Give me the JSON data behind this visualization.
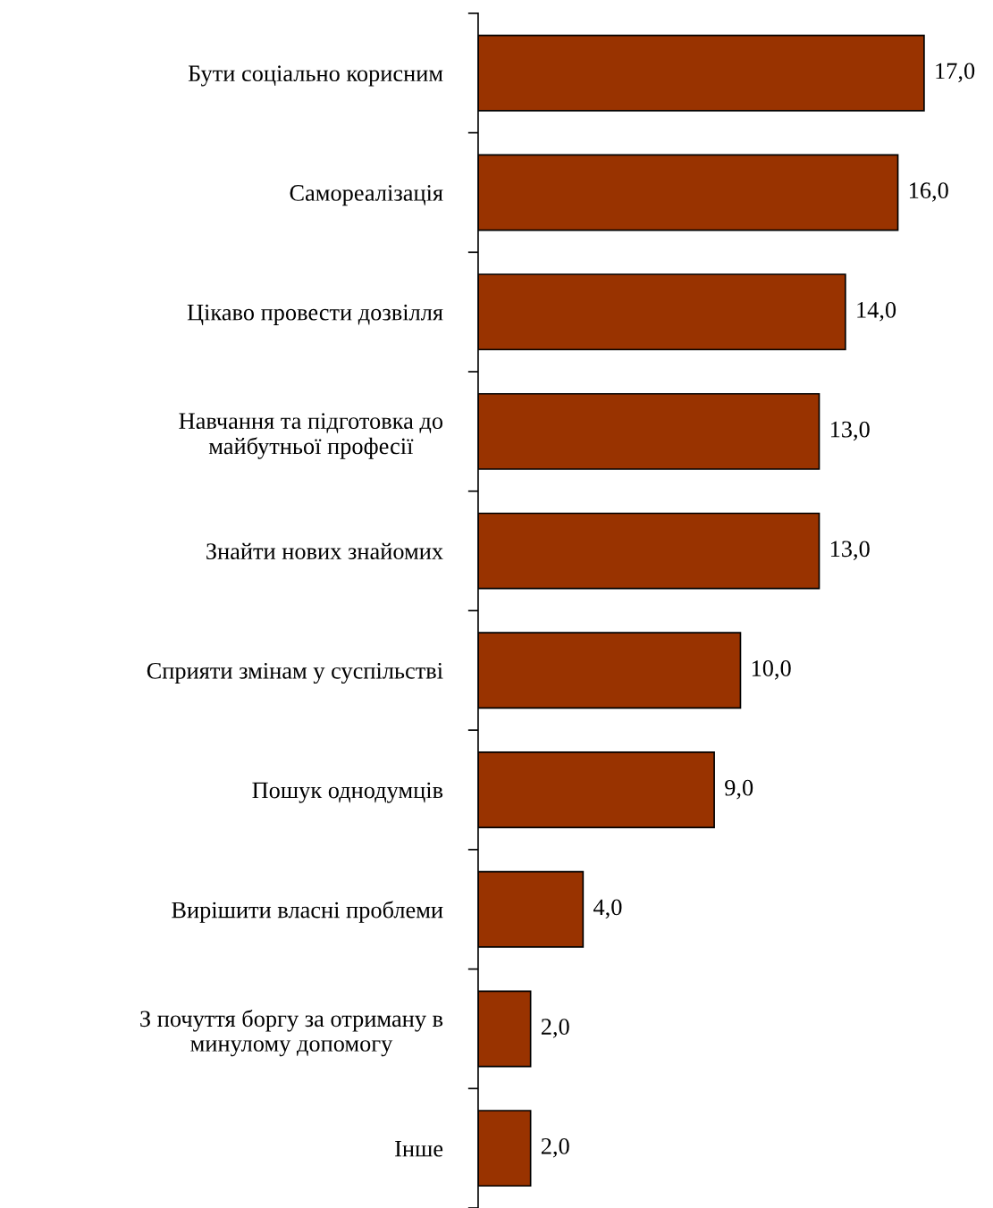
{
  "chart_data": {
    "type": "bar",
    "orientation": "horizontal",
    "categories": [
      "Бути соціально корисним",
      "Самореалізація",
      "Цікаво провести дозвілля",
      "Навчання та підготовка до\nмайбутньої професії",
      "Знайти нових знайомих",
      "Сприяти змінам у суспільстві",
      "Пошук однодумців",
      "Вирішити власні проблеми",
      "З почуття боргу за отриману в\nминулому допомогу",
      "Інше"
    ],
    "values": [
      17.0,
      16.0,
      14.0,
      13.0,
      13.0,
      10.0,
      9.0,
      4.0,
      2.0,
      2.0
    ],
    "value_labels": [
      "17,0",
      "16,0",
      "14,0",
      "13,0",
      "13,0",
      "10,0",
      "9,0",
      "4,0",
      "2,0",
      "2,0"
    ],
    "color": "#993300",
    "tick_labels": "y",
    "grid": false,
    "legend": false
  }
}
